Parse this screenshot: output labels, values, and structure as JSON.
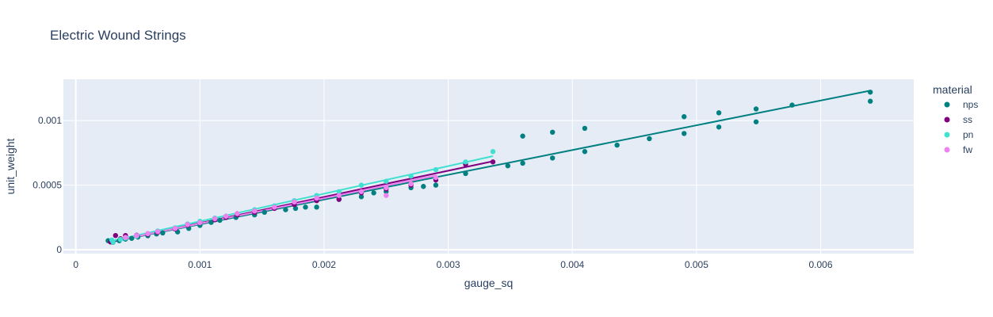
{
  "chart_data": {
    "type": "scatter",
    "title": "Electric Wound Strings",
    "xlabel": "gauge_sq",
    "ylabel": "unit_weight",
    "xlim": [
      -0.0001,
      0.00675
    ],
    "ylim": [
      -3e-05,
      0.00132
    ],
    "x_ticks": [
      0,
      0.001,
      0.002,
      0.003,
      0.004,
      0.005,
      0.006
    ],
    "x_tick_labels": [
      "0",
      "0.001",
      "0.002",
      "0.003",
      "0.004",
      "0.005",
      "0.006"
    ],
    "y_ticks": [
      0,
      0.0005,
      0.001
    ],
    "y_tick_labels": [
      "0",
      "0.0005",
      "0.001"
    ],
    "grid": true,
    "legend": {
      "title": "material",
      "placement": "right"
    },
    "plot_background": "#e5ecf6",
    "series": [
      {
        "name": "nps",
        "color": "#008080",
        "points": [
          [
            0.00026,
            7e-05
          ],
          [
            0.0003,
            5.8e-05
          ],
          [
            0.00035,
            7e-05
          ],
          [
            0.0004,
            8.2e-05
          ],
          [
            0.00045,
            8.8e-05
          ],
          [
            0.0005,
            9.8e-05
          ],
          [
            0.00058,
            0.000108
          ],
          [
            0.00065,
            0.000122
          ],
          [
            0.0007,
            0.00013
          ],
          [
            0.00082,
            0.000138
          ],
          [
            0.00091,
            0.000165
          ],
          [
            0.001,
            0.000188
          ],
          [
            0.00109,
            0.000212
          ],
          [
            0.00116,
            0.000228
          ],
          [
            0.00129,
            0.00025
          ],
          [
            0.00144,
            0.00027
          ],
          [
            0.00152,
            0.00029
          ],
          [
            0.00169,
            0.00031
          ],
          [
            0.00177,
            0.00032
          ],
          [
            0.00185,
            0.00033
          ],
          [
            0.00194,
            0.00033
          ],
          [
            0.00212,
            0.00039
          ],
          [
            0.0023,
            0.00041
          ],
          [
            0.0024,
            0.00044
          ],
          [
            0.0025,
            0.00045
          ],
          [
            0.0027,
            0.00048
          ],
          [
            0.0028,
            0.00049
          ],
          [
            0.0029,
            0.0005
          ],
          [
            0.00314,
            0.00059
          ],
          [
            0.00348,
            0.00065
          ],
          [
            0.0036,
            0.00067
          ],
          [
            0.0036,
            0.00088
          ],
          [
            0.00384,
            0.00071
          ],
          [
            0.00384,
            0.00091
          ],
          [
            0.0041,
            0.00076
          ],
          [
            0.0041,
            0.00094
          ],
          [
            0.00436,
            0.00081
          ],
          [
            0.00462,
            0.00086
          ],
          [
            0.0049,
            0.0009
          ],
          [
            0.0049,
            0.00103
          ],
          [
            0.00518,
            0.00095
          ],
          [
            0.00518,
            0.00106
          ],
          [
            0.00548,
            0.00099
          ],
          [
            0.00548,
            0.00109
          ],
          [
            0.00577,
            0.00112
          ],
          [
            0.0064,
            0.00115
          ],
          [
            0.0064,
            0.00122
          ]
        ],
        "trendline": [
          [
            0.00026,
            5.5e-05
          ],
          [
            0.0064,
            0.001232
          ]
        ]
      },
      {
        "name": "ss",
        "color": "#800080",
        "points": [
          [
            0.00028,
            6e-05
          ],
          [
            0.00032,
            0.00011
          ],
          [
            0.00036,
            8.5e-05
          ],
          [
            0.0004,
            0.00011
          ],
          [
            0.00049,
            0.000112
          ],
          [
            0.00058,
            0.00012
          ],
          [
            0.00066,
            0.000135
          ],
          [
            0.0008,
            0.00016
          ],
          [
            0.0009,
            0.00019
          ],
          [
            0.001,
            0.00021
          ],
          [
            0.00112,
            0.000232
          ],
          [
            0.00121,
            0.00025
          ],
          [
            0.0013,
            0.00027
          ],
          [
            0.00144,
            0.00029
          ],
          [
            0.0016,
            0.00032
          ],
          [
            0.00176,
            0.00035
          ],
          [
            0.00194,
            0.00038
          ],
          [
            0.00212,
            0.00039
          ],
          [
            0.0023,
            0.00044
          ],
          [
            0.0025,
            0.00047
          ],
          [
            0.0027,
            0.0005
          ],
          [
            0.0029,
            0.00054
          ],
          [
            0.00314,
            0.00066
          ],
          [
            0.00336,
            0.00068
          ]
        ],
        "trendline": [
          [
            0.00028,
            6e-05
          ],
          [
            0.00336,
            0.000685
          ]
        ]
      },
      {
        "name": "pn",
        "color": "#40e0d0",
        "points": [
          [
            0.00029,
            7.5e-05
          ],
          [
            0.0003,
            6e-05
          ],
          [
            0.00036,
            8e-05
          ],
          [
            0.0004,
            9e-05
          ],
          [
            0.00049,
            0.000105
          ],
          [
            0.00058,
            0.000125
          ],
          [
            0.00066,
            0.000145
          ],
          [
            0.0008,
            0.00017
          ],
          [
            0.0009,
            0.0002
          ],
          [
            0.001,
            0.00022
          ],
          [
            0.00112,
            0.000245
          ],
          [
            0.00121,
            0.00026
          ],
          [
            0.0013,
            0.00028
          ],
          [
            0.00144,
            0.00031
          ],
          [
            0.0016,
            0.00034
          ],
          [
            0.00176,
            0.00038
          ],
          [
            0.00194,
            0.00042
          ],
          [
            0.00212,
            0.00045
          ],
          [
            0.0023,
            0.0005
          ],
          [
            0.0025,
            0.00053
          ],
          [
            0.0027,
            0.00057
          ],
          [
            0.0029,
            0.00062
          ],
          [
            0.00314,
            0.00068
          ],
          [
            0.00336,
            0.00076
          ]
        ],
        "trendline": [
          [
            0.00029,
            6.8e-05
          ],
          [
            0.00336,
            0.000725
          ]
        ]
      },
      {
        "name": "fw",
        "color": "#ee82ee",
        "points": [
          [
            0.0004,
            9.5e-05
          ],
          [
            0.00049,
            0.00011
          ],
          [
            0.00058,
            0.000125
          ],
          [
            0.00066,
            0.00014
          ],
          [
            0.0008,
            0.000165
          ],
          [
            0.0009,
            0.000195
          ],
          [
            0.001,
            0.00021
          ],
          [
            0.00112,
            0.00024
          ],
          [
            0.00121,
            0.00026
          ],
          [
            0.0013,
            0.00028
          ],
          [
            0.00144,
            0.0003
          ],
          [
            0.0016,
            0.00033
          ],
          [
            0.00176,
            0.00037
          ],
          [
            0.00194,
            0.0004
          ],
          [
            0.00212,
            0.00042
          ],
          [
            0.0023,
            0.00045
          ],
          [
            0.0025,
            0.00042
          ],
          [
            0.0025,
            0.00048
          ],
          [
            0.0027,
            0.00051
          ],
          [
            0.0029,
            0.00056
          ]
        ],
        "trendline": [
          [
            0.0004,
            8.5e-05
          ],
          [
            0.0029,
            0.000575
          ]
        ]
      }
    ]
  }
}
